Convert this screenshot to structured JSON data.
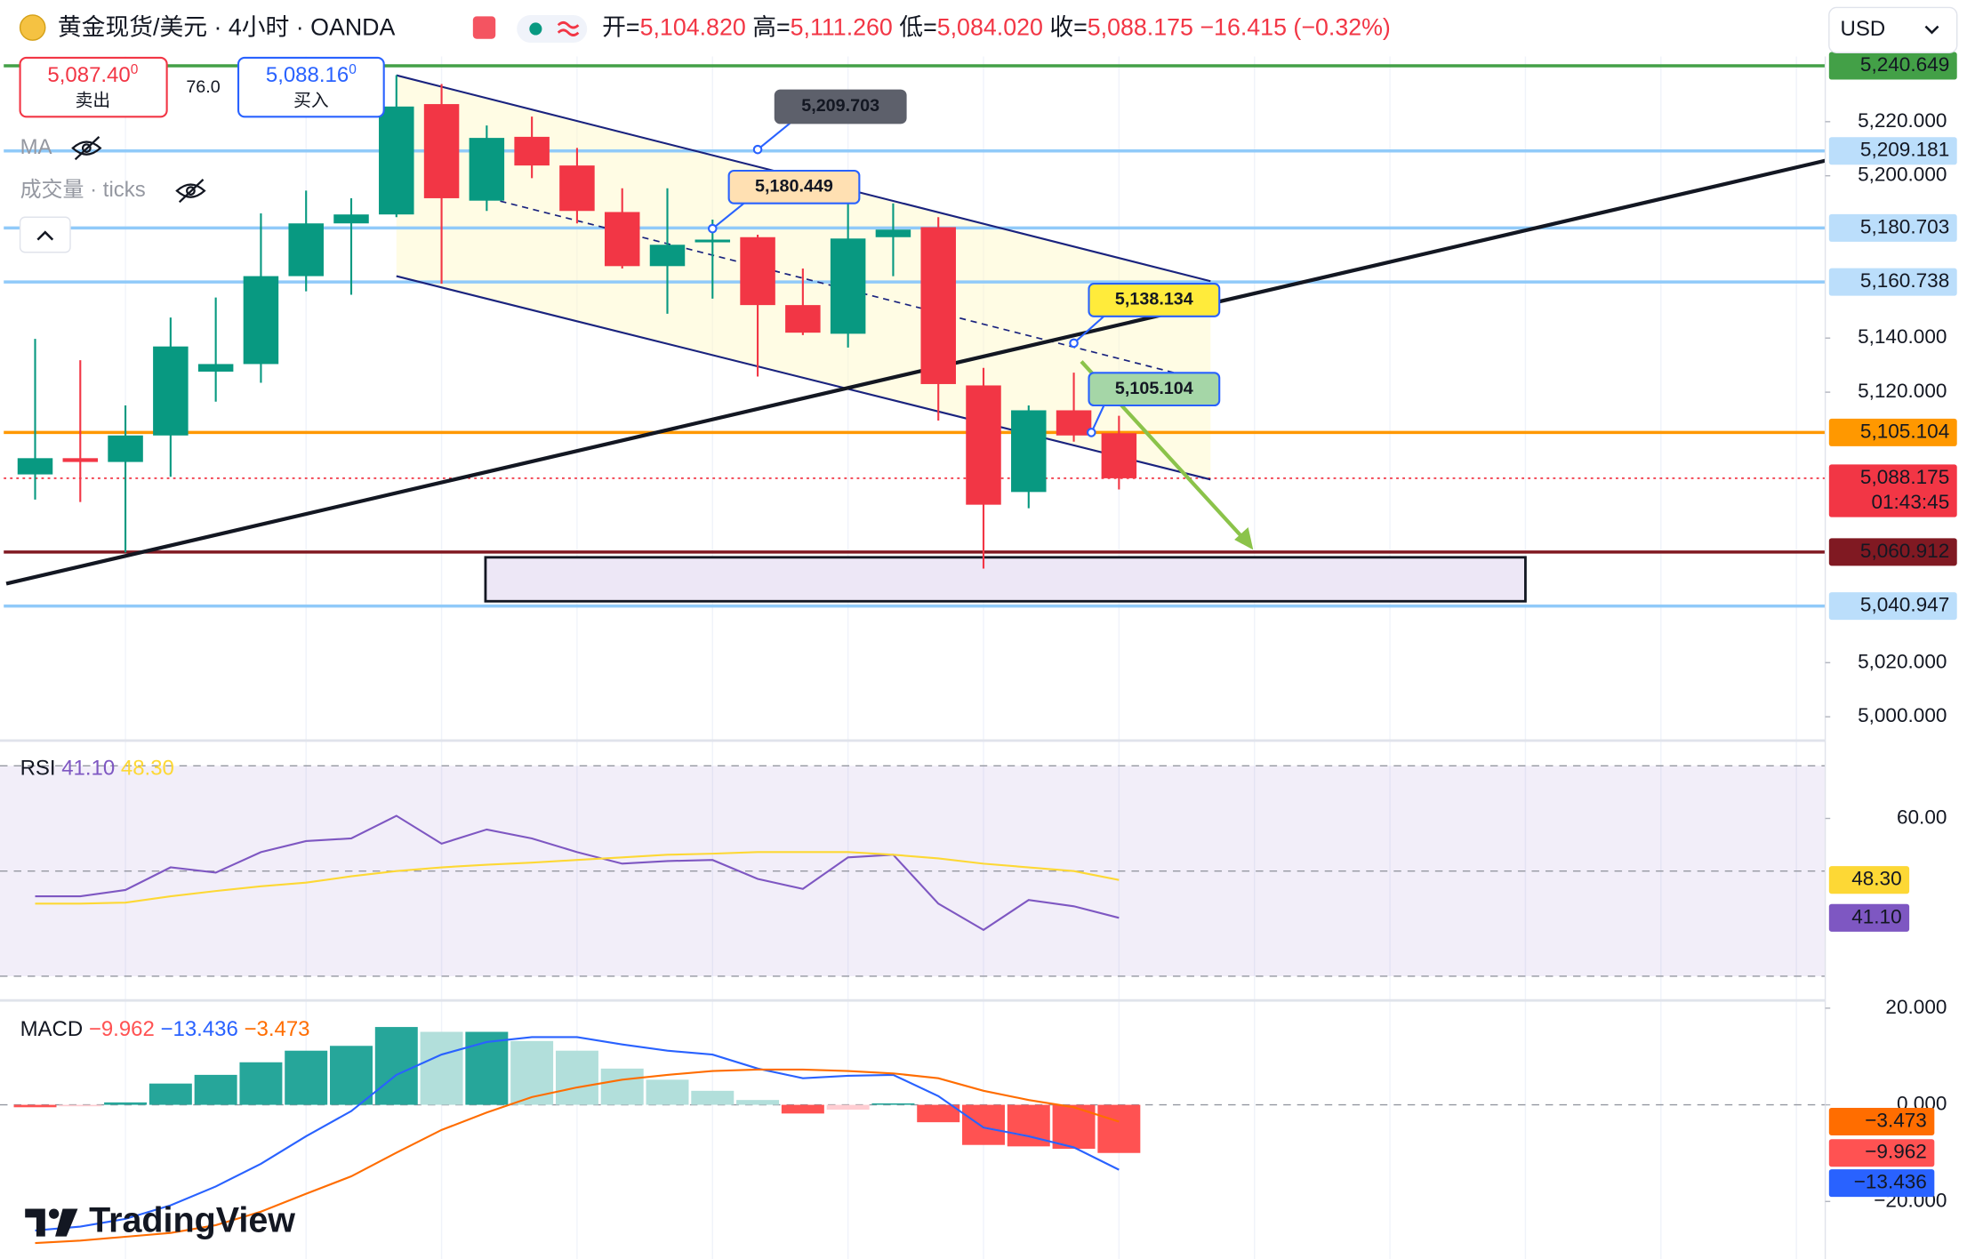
{
  "header": {
    "symbol": "黄金现货/美元 · 4小时 · OANDA",
    "ohlc": [
      {
        "label": "开=",
        "value": "5,104.820"
      },
      {
        "label": "高=",
        "value": "5,111.260"
      },
      {
        "label": "低=",
        "value": "5,084.020"
      },
      {
        "label": "收=",
        "value": "5,088.175"
      }
    ],
    "change": "−16.415 (−0.32%)",
    "currency": "USD"
  },
  "trade": {
    "sell_price": "5,087.40",
    "sell_sup": "0",
    "sell_label": "卖出",
    "spread": "76.0",
    "buy_price": "5,088.16",
    "buy_sup": "0",
    "buy_label": "买入"
  },
  "indicators": {
    "ma": "MA",
    "volume": "成交量 · ticks"
  },
  "logo": "TradingView",
  "chart_data": [
    {
      "type": "candlestick",
      "ylim": [
        4991.2,
        5244.1
      ],
      "yticks": [
        {
          "value": 5220,
          "label": "5,220.000"
        },
        {
          "value": 5200,
          "label": "5,200.000"
        },
        {
          "value": 5140,
          "label": "5,140.000"
        },
        {
          "value": 5120,
          "label": "5,120.000"
        },
        {
          "value": 5020,
          "label": "5,020.000"
        },
        {
          "value": 5000,
          "label": "5,000.000"
        }
      ],
      "up_color": "#089981",
      "down_color": "#f23645",
      "open": [
        5089.6,
        5095.6,
        5094.2,
        5104.0,
        5127.6,
        5130.4,
        5162.9,
        5182.4,
        5185.7,
        5226.5,
        5190.8,
        5214.4,
        5203.8,
        5186.6,
        5166.6,
        5175.4,
        5177.3,
        5152.2,
        5141.6,
        5177.3,
        5181.0,
        5122.5,
        5083.1,
        5113.3,
        5104.82
      ],
      "high": [
        5139.7,
        5131.8,
        5115.1,
        5147.6,
        5155.0,
        5186.1,
        5194.5,
        5191.7,
        5237.2,
        5233.9,
        5218.6,
        5221.9,
        5210.3,
        5195.4,
        5195.4,
        5183.8,
        5178.2,
        5165.7,
        5190.8,
        5189.8,
        5184.7,
        5129.0,
        5115.1,
        5127.2,
        5111.26
      ],
      "low": [
        5080.3,
        5079.4,
        5060.8,
        5088.7,
        5116.5,
        5123.5,
        5157.3,
        5156.0,
        5184.7,
        5160.1,
        5187.0,
        5199.1,
        5182.4,
        5165.7,
        5149.0,
        5154.6,
        5125.8,
        5141.1,
        5136.5,
        5162.9,
        5109.5,
        5054.8,
        5077.1,
        5101.7,
        5084.02
      ],
      "close": [
        5095.6,
        5094.2,
        5104.0,
        5136.9,
        5130.4,
        5162.9,
        5182.4,
        5185.7,
        5225.6,
        5191.7,
        5214.0,
        5203.8,
        5187.0,
        5166.6,
        5174.5,
        5176.4,
        5152.2,
        5142.0,
        5176.8,
        5180.1,
        5123.0,
        5078.4,
        5113.3,
        5104.0,
        5088.175
      ],
      "price_lines": [
        {
          "value": 5240.649,
          "label": "5,240.649",
          "color": "#43a047",
          "tag_color": "#43a047",
          "text_color": "#ffffff"
        },
        {
          "value": 5209.181,
          "label": "5,209.181",
          "color": "#90caf9",
          "tag_color": "#bbdefb",
          "text_color": "#131722"
        },
        {
          "value": 5180.703,
          "label": "5,180.703",
          "color": "#90caf9",
          "tag_color": "#bbdefb",
          "text_color": "#131722"
        },
        {
          "value": 5160.738,
          "label": "5,160.738",
          "color": "#90caf9",
          "tag_color": "#bbdefb",
          "text_color": "#131722"
        },
        {
          "value": 5105.104,
          "label": "5,105.104",
          "color": "#ff9800",
          "tag_color": "#ff9800",
          "text_color": "#131722"
        },
        {
          "value": 5060.912,
          "label": "5,060.912",
          "color": "#801922",
          "tag_color": "#801922",
          "text_color": "#ffffff"
        },
        {
          "value": 5040.947,
          "label": "5,040.947",
          "color": "#90caf9",
          "tag_color": "#bbdefb",
          "text_color": "#131722"
        }
      ],
      "last_price": {
        "value": 5088.175,
        "label": "5,088.175",
        "countdown": "01:43:45",
        "color": "#f23645"
      },
      "callouts": [
        {
          "value": 5209.703,
          "label": "5,209.703",
          "fill": "#5d606b",
          "text_color": "#ffffff"
        },
        {
          "value": 5180.449,
          "label": "5,180.449",
          "fill": "#ffe0b2",
          "text_color": "#131722"
        },
        {
          "value": 5138.134,
          "label": "5,138.134",
          "fill": "#ffeb3b",
          "text_color": "#131722"
        },
        {
          "value": 5105.104,
          "label": "5,105.104",
          "fill": "#a5d6a7",
          "text_color": "#131722"
        }
      ]
    },
    {
      "type": "line",
      "title": "RSI",
      "ylim": [
        25.4,
        74.8
      ],
      "yticks": [
        {
          "value": 60,
          "label": "60.00"
        }
      ],
      "levels": [
        70,
        50,
        30
      ],
      "band_color": "#7e57c2",
      "series": [
        {
          "color": "#7e57c2",
          "last_label": "41.10",
          "values": [
            45.2,
            45.2,
            46.4,
            50.7,
            49.7,
            53.6,
            55.7,
            56.2,
            60.5,
            55.2,
            57.9,
            56.2,
            53.6,
            51.4,
            51.9,
            52.1,
            48.5,
            46.6,
            52.6,
            53.1,
            43.8,
            38.8,
            44.5,
            43.3,
            41.1
          ]
        },
        {
          "color": "#fdd835",
          "last_label": "48.30",
          "values": [
            43.8,
            43.8,
            44.0,
            45.2,
            46.2,
            47.1,
            47.8,
            49.0,
            50.0,
            50.7,
            51.2,
            51.6,
            52.1,
            52.6,
            53.1,
            53.3,
            53.6,
            53.6,
            53.6,
            53.1,
            52.4,
            51.4,
            50.7,
            50.0,
            48.3
          ]
        }
      ]
    },
    {
      "type": "macd",
      "title": "MACD",
      "ylim": [
        -31.9,
        21.6
      ],
      "yticks": [
        {
          "value": 20,
          "label": "20.000"
        },
        {
          "value": 0,
          "label": "0.000"
        },
        {
          "value": -20,
          "label": "−20.000"
        }
      ],
      "zero_line": true,
      "histogram": {
        "last_label": "−9.962",
        "colors": [
          "#26a69a",
          "#b2dfdb",
          "#ff5252",
          "#ffcdd2"
        ],
        "values": [
          -0.5,
          -0.3,
          0.5,
          4.4,
          6.2,
          8.8,
          11.2,
          12.2,
          16.1,
          15.1,
          15.1,
          13.2,
          11.2,
          7.5,
          5.2,
          2.9,
          1.0,
          -1.8,
          -1.0,
          0.3,
          -3.6,
          -8.3,
          -8.6,
          -9.1,
          -9.962
        ]
      },
      "series": [
        {
          "color": "#2962ff",
          "last_label": "−13.436",
          "values": [
            -26.0,
            -25.2,
            -23.6,
            -20.8,
            -16.9,
            -12.2,
            -6.5,
            -1.3,
            6.2,
            10.4,
            13.0,
            14.0,
            14.0,
            12.5,
            11.2,
            10.4,
            7.5,
            5.5,
            6.0,
            6.2,
            1.8,
            -4.7,
            -6.5,
            -8.8,
            -13.436
          ]
        },
        {
          "color": "#ff6d00",
          "last_label": "−3.473",
          "values": [
            -28.6,
            -28.1,
            -27.3,
            -26.5,
            -24.9,
            -22.1,
            -18.4,
            -14.8,
            -9.9,
            -5.2,
            -1.6,
            1.6,
            3.6,
            5.2,
            6.2,
            7.0,
            7.3,
            7.3,
            7.0,
            6.5,
            5.5,
            2.9,
            1.0,
            -0.5,
            -3.473
          ]
        }
      ]
    }
  ]
}
